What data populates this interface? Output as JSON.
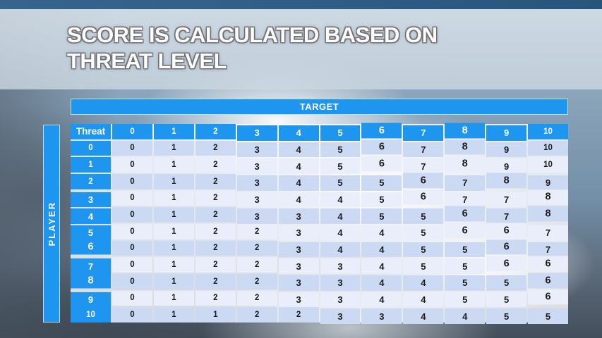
{
  "title": {
    "line1": "SCORE IS CALCULATED BASED ON",
    "line2": "THREAT LEVEL"
  },
  "matrix": {
    "target_label": "TARGET",
    "player_label": "PLAYER",
    "corner_label": "Threat",
    "column_headers": [
      "0",
      "1",
      "2",
      "3",
      "4",
      "5",
      "6",
      "7",
      "8",
      "9",
      "10"
    ],
    "rows": [
      {
        "threat": "0",
        "values": [
          0,
          1,
          2,
          3,
          4,
          5,
          6,
          7,
          8,
          9,
          10
        ]
      },
      {
        "threat": "1",
        "values": [
          0,
          1,
          2,
          3,
          4,
          5,
          6,
          7,
          8,
          9,
          10
        ]
      },
      {
        "threat": "2",
        "values": [
          0,
          1,
          2,
          3,
          4,
          5,
          5,
          6,
          7,
          8,
          9
        ]
      },
      {
        "threat": "3",
        "values": [
          0,
          1,
          2,
          3,
          4,
          4,
          5,
          6,
          7,
          7,
          8
        ]
      },
      {
        "threat": "4",
        "values": [
          0,
          1,
          2,
          3,
          3,
          4,
          5,
          5,
          6,
          7,
          8
        ]
      },
      {
        "threat": "5",
        "values": [
          0,
          1,
          2,
          2,
          3,
          4,
          4,
          5,
          6,
          6,
          7
        ]
      },
      {
        "threat": "6",
        "values": [
          0,
          1,
          2,
          2,
          3,
          4,
          4,
          5,
          5,
          6,
          7
        ]
      },
      {
        "threat": "7",
        "values": [
          0,
          1,
          2,
          2,
          3,
          3,
          4,
          5,
          5,
          6,
          6
        ]
      },
      {
        "threat": "8",
        "values": [
          0,
          1,
          2,
          2,
          3,
          3,
          4,
          4,
          5,
          5,
          6
        ]
      },
      {
        "threat": "9",
        "values": [
          0,
          1,
          2,
          2,
          3,
          3,
          4,
          4,
          5,
          5,
          6
        ]
      },
      {
        "threat": "10",
        "values": [
          0,
          1,
          1,
          2,
          2,
          3,
          3,
          4,
          4,
          5,
          5
        ]
      }
    ]
  },
  "colors": {
    "accent_blue": "#1E96F0",
    "row_even": "#CBD9F3",
    "row_odd": "#EAEEFA",
    "top_strip": "#2E5D85",
    "banner": "#CDD9E3"
  }
}
